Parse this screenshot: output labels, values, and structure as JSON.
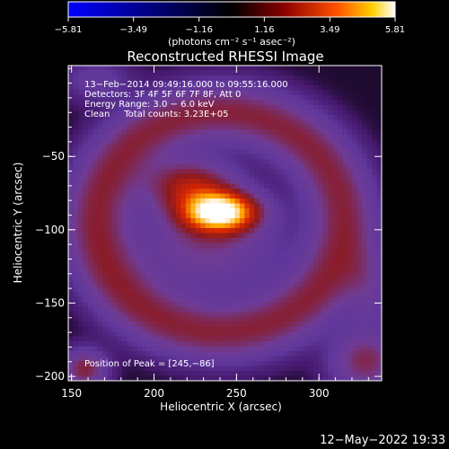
{
  "chart_data": {
    "type": "heatmap",
    "title": "Reconstructed RHESSI Image",
    "xlabel": "Heliocentric X (arcsec)",
    "ylabel": "Heliocentric Y (arcsec)",
    "xlim": [
      148,
      338
    ],
    "ylim": [
      -203,
      12
    ],
    "x_ticks": [
      150,
      200,
      250,
      300
    ],
    "y_ticks": [
      -50,
      -100,
      -150,
      -200
    ],
    "x_tick_labels": [
      "150",
      "200",
      "250",
      "300"
    ],
    "y_tick_labels": [
      "−50",
      "−100",
      "−150",
      "−200"
    ],
    "colorbar": {
      "min": -5.81,
      "max": 5.81,
      "ticks": [
        -5.81,
        -3.49,
        -1.16,
        1.16,
        3.49,
        5.81
      ],
      "tick_labels": [
        "−5.81",
        "−3.49",
        "−1.16",
        "1.16",
        "3.49",
        "5.81"
      ],
      "unit": "(photons cm⁻² s⁻¹ asec⁻²)"
    },
    "annotations": [
      "13−Feb−2014 09:49:16.000 to 09:55:16.000",
      "Detectors: 3F 4F 5F 6F 7F 8F, Att 0",
      "Energy Range: 3.0 − 6.0 keV",
      "Clean     Total counts: 3.23E+05"
    ],
    "peak_label": "Position of Peak = [245,−86]",
    "peak": {
      "x": 245,
      "y": -86,
      "value": 5.81
    },
    "image_components": [
      {
        "kind": "peak",
        "x": 240,
        "y": -88,
        "sx": 15,
        "sy": 9,
        "amp": 5.6
      },
      {
        "kind": "peak",
        "x": 222,
        "y": -70,
        "sx": 18,
        "sy": 12,
        "amp": 2.4
      },
      {
        "kind": "peak",
        "x": 232,
        "y": -110,
        "sx": 30,
        "sy": 22,
        "amp": 1.4
      },
      {
        "kind": "ring",
        "x": 240,
        "y": -95,
        "r": 75,
        "w": 14,
        "amp": 2.0
      },
      {
        "kind": "peak",
        "x": 328,
        "y": -190,
        "sx": 14,
        "sy": 14,
        "amp": 1.8
      },
      {
        "kind": "peak",
        "x": 158,
        "y": -195,
        "sx": 9,
        "sy": 9,
        "amp": 2.0
      },
      {
        "kind": "peak",
        "x": 330,
        "y": -140,
        "sx": 10,
        "sy": 20,
        "amp": 0.9
      },
      {
        "kind": "peak",
        "x": 165,
        "y": 2,
        "sx": 14,
        "sy": 10,
        "amp": 0.8
      }
    ],
    "background_level": 0.1
  },
  "footer": {
    "date": "12−May−2022 19:33"
  }
}
